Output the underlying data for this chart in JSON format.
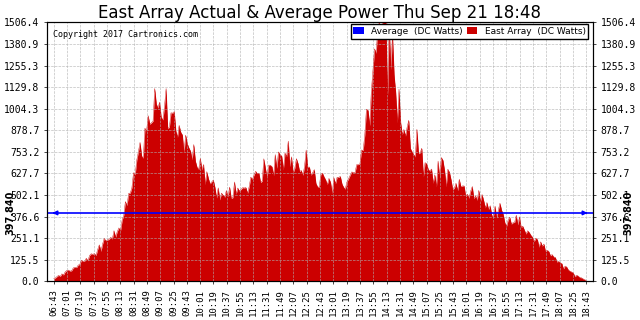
{
  "title": "East Array Actual & Average Power Thu Sep 21 18:48",
  "copyright": "Copyright 2017 Cartronics.com",
  "legend_labels": [
    "Average  (DC Watts)",
    "East Array  (DC Watts)"
  ],
  "legend_colors": [
    "blue",
    "red"
  ],
  "average_value": 397.84,
  "avg_label": "397.840",
  "ylim": [
    0,
    1506.4
  ],
  "yticks": [
    0.0,
    125.5,
    251.1,
    376.6,
    502.1,
    627.7,
    753.2,
    878.7,
    1004.3,
    1129.8,
    1255.3,
    1380.9,
    1506.4
  ],
  "background_color": "#ffffff",
  "fill_color": "#cc0000",
  "avg_line_color": "blue",
  "grid_color": "#b0b0b0",
  "title_fontsize": 12,
  "tick_fontsize": 7,
  "start_time": "06:43",
  "end_time": "18:43",
  "interval_min": 18
}
